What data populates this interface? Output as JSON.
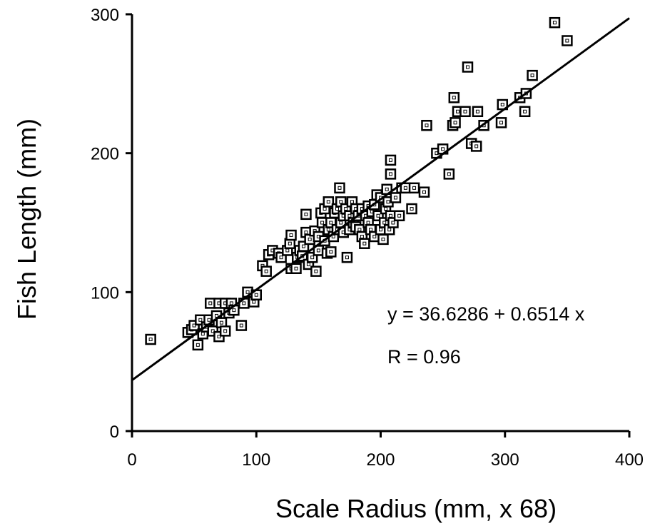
{
  "chart_data": {
    "type": "scatter",
    "title": "",
    "xlabel": "Scale Radius (mm, x 68)",
    "ylabel": "Fish Length (mm)",
    "xlim": [
      0,
      400
    ],
    "ylim": [
      0,
      300
    ],
    "xticks": [
      0,
      100,
      200,
      300,
      400
    ],
    "yticks": [
      0,
      100,
      200,
      300
    ],
    "xtick_labels": [
      "0",
      "100",
      "200",
      "300",
      "400"
    ],
    "ytick_labels": [
      "0",
      "100",
      "200",
      "300"
    ],
    "grid": false,
    "legend": "none",
    "marker": "hollow-square",
    "series": [
      {
        "points": [
          [
            15,
            66
          ],
          [
            45,
            71
          ],
          [
            48,
            73
          ],
          [
            50,
            76
          ],
          [
            53,
            62
          ],
          [
            55,
            80
          ],
          [
            57,
            70
          ],
          [
            60,
            75
          ],
          [
            62,
            80
          ],
          [
            63,
            92
          ],
          [
            65,
            72
          ],
          [
            68,
            83
          ],
          [
            70,
            92
          ],
          [
            70,
            68
          ],
          [
            72,
            78
          ],
          [
            75,
            72
          ],
          [
            75,
            92
          ],
          [
            78,
            85
          ],
          [
            80,
            92
          ],
          [
            82,
            87
          ],
          [
            88,
            76
          ],
          [
            90,
            92
          ],
          [
            93,
            100
          ],
          [
            98,
            93
          ],
          [
            100,
            98
          ],
          [
            105,
            119
          ],
          [
            108,
            115
          ],
          [
            110,
            127
          ],
          [
            113,
            130
          ],
          [
            118,
            128
          ],
          [
            120,
            125
          ],
          [
            125,
            130
          ],
          [
            127,
            135
          ],
          [
            128,
            117
          ],
          [
            128,
            141
          ],
          [
            132,
            117
          ],
          [
            133,
            125
          ],
          [
            135,
            130
          ],
          [
            137,
            126
          ],
          [
            138,
            133
          ],
          [
            140,
            143
          ],
          [
            140,
            156
          ],
          [
            142,
            120
          ],
          [
            143,
            138
          ],
          [
            145,
            125
          ],
          [
            147,
            144
          ],
          [
            148,
            115
          ],
          [
            150,
            140
          ],
          [
            150,
            130
          ],
          [
            152,
            157
          ],
          [
            153,
            150
          ],
          [
            155,
            160
          ],
          [
            155,
            137
          ],
          [
            157,
            128
          ],
          [
            158,
            145
          ],
          [
            158,
            165
          ],
          [
            160,
            129
          ],
          [
            160,
            150
          ],
          [
            162,
            140
          ],
          [
            163,
            157
          ],
          [
            165,
            145
          ],
          [
            165,
            160
          ],
          [
            167,
            175
          ],
          [
            168,
            165
          ],
          [
            168,
            150
          ],
          [
            170,
            143
          ],
          [
            170,
            155
          ],
          [
            172,
            160
          ],
          [
            173,
            125
          ],
          [
            175,
            145
          ],
          [
            175,
            155
          ],
          [
            177,
            165
          ],
          [
            178,
            150
          ],
          [
            180,
            147
          ],
          [
            180,
            160
          ],
          [
            182,
            155
          ],
          [
            183,
            145
          ],
          [
            185,
            160
          ],
          [
            185,
            140
          ],
          [
            187,
            135
          ],
          [
            188,
            155
          ],
          [
            190,
            162
          ],
          [
            190,
            150
          ],
          [
            192,
            145
          ],
          [
            193,
            158
          ],
          [
            195,
            163
          ],
          [
            195,
            140
          ],
          [
            197,
            170
          ],
          [
            198,
            155
          ],
          [
            200,
            145
          ],
          [
            200,
            168
          ],
          [
            202,
            138
          ],
          [
            203,
            150
          ],
          [
            204,
            160
          ],
          [
            205,
            174
          ],
          [
            206,
            165
          ],
          [
            207,
            145
          ],
          [
            208,
            155
          ],
          [
            208,
            185
          ],
          [
            208,
            195
          ],
          [
            210,
            150
          ],
          [
            212,
            168
          ],
          [
            215,
            155
          ],
          [
            217,
            175
          ],
          [
            220,
            175
          ],
          [
            225,
            160
          ],
          [
            227,
            175
          ],
          [
            235,
            172
          ],
          [
            237,
            220
          ],
          [
            245,
            200
          ],
          [
            250,
            203
          ],
          [
            255,
            185
          ],
          [
            258,
            220
          ],
          [
            259,
            240
          ],
          [
            260,
            222
          ],
          [
            262,
            230
          ],
          [
            268,
            230
          ],
          [
            270,
            262
          ],
          [
            273,
            207
          ],
          [
            277,
            205
          ],
          [
            278,
            230
          ],
          [
            283,
            220
          ],
          [
            297,
            222
          ],
          [
            298,
            235
          ],
          [
            312,
            240
          ],
          [
            316,
            230
          ],
          [
            317,
            243
          ],
          [
            322,
            256
          ],
          [
            340,
            294
          ],
          [
            350,
            281
          ]
        ]
      }
    ],
    "fit_line": {
      "intercept": 36.6286,
      "slope": 0.6514,
      "x_range": [
        0,
        400
      ]
    },
    "annotations": [
      "y = 36.6286 + 0.6514 x",
      "R = 0.96"
    ]
  }
}
